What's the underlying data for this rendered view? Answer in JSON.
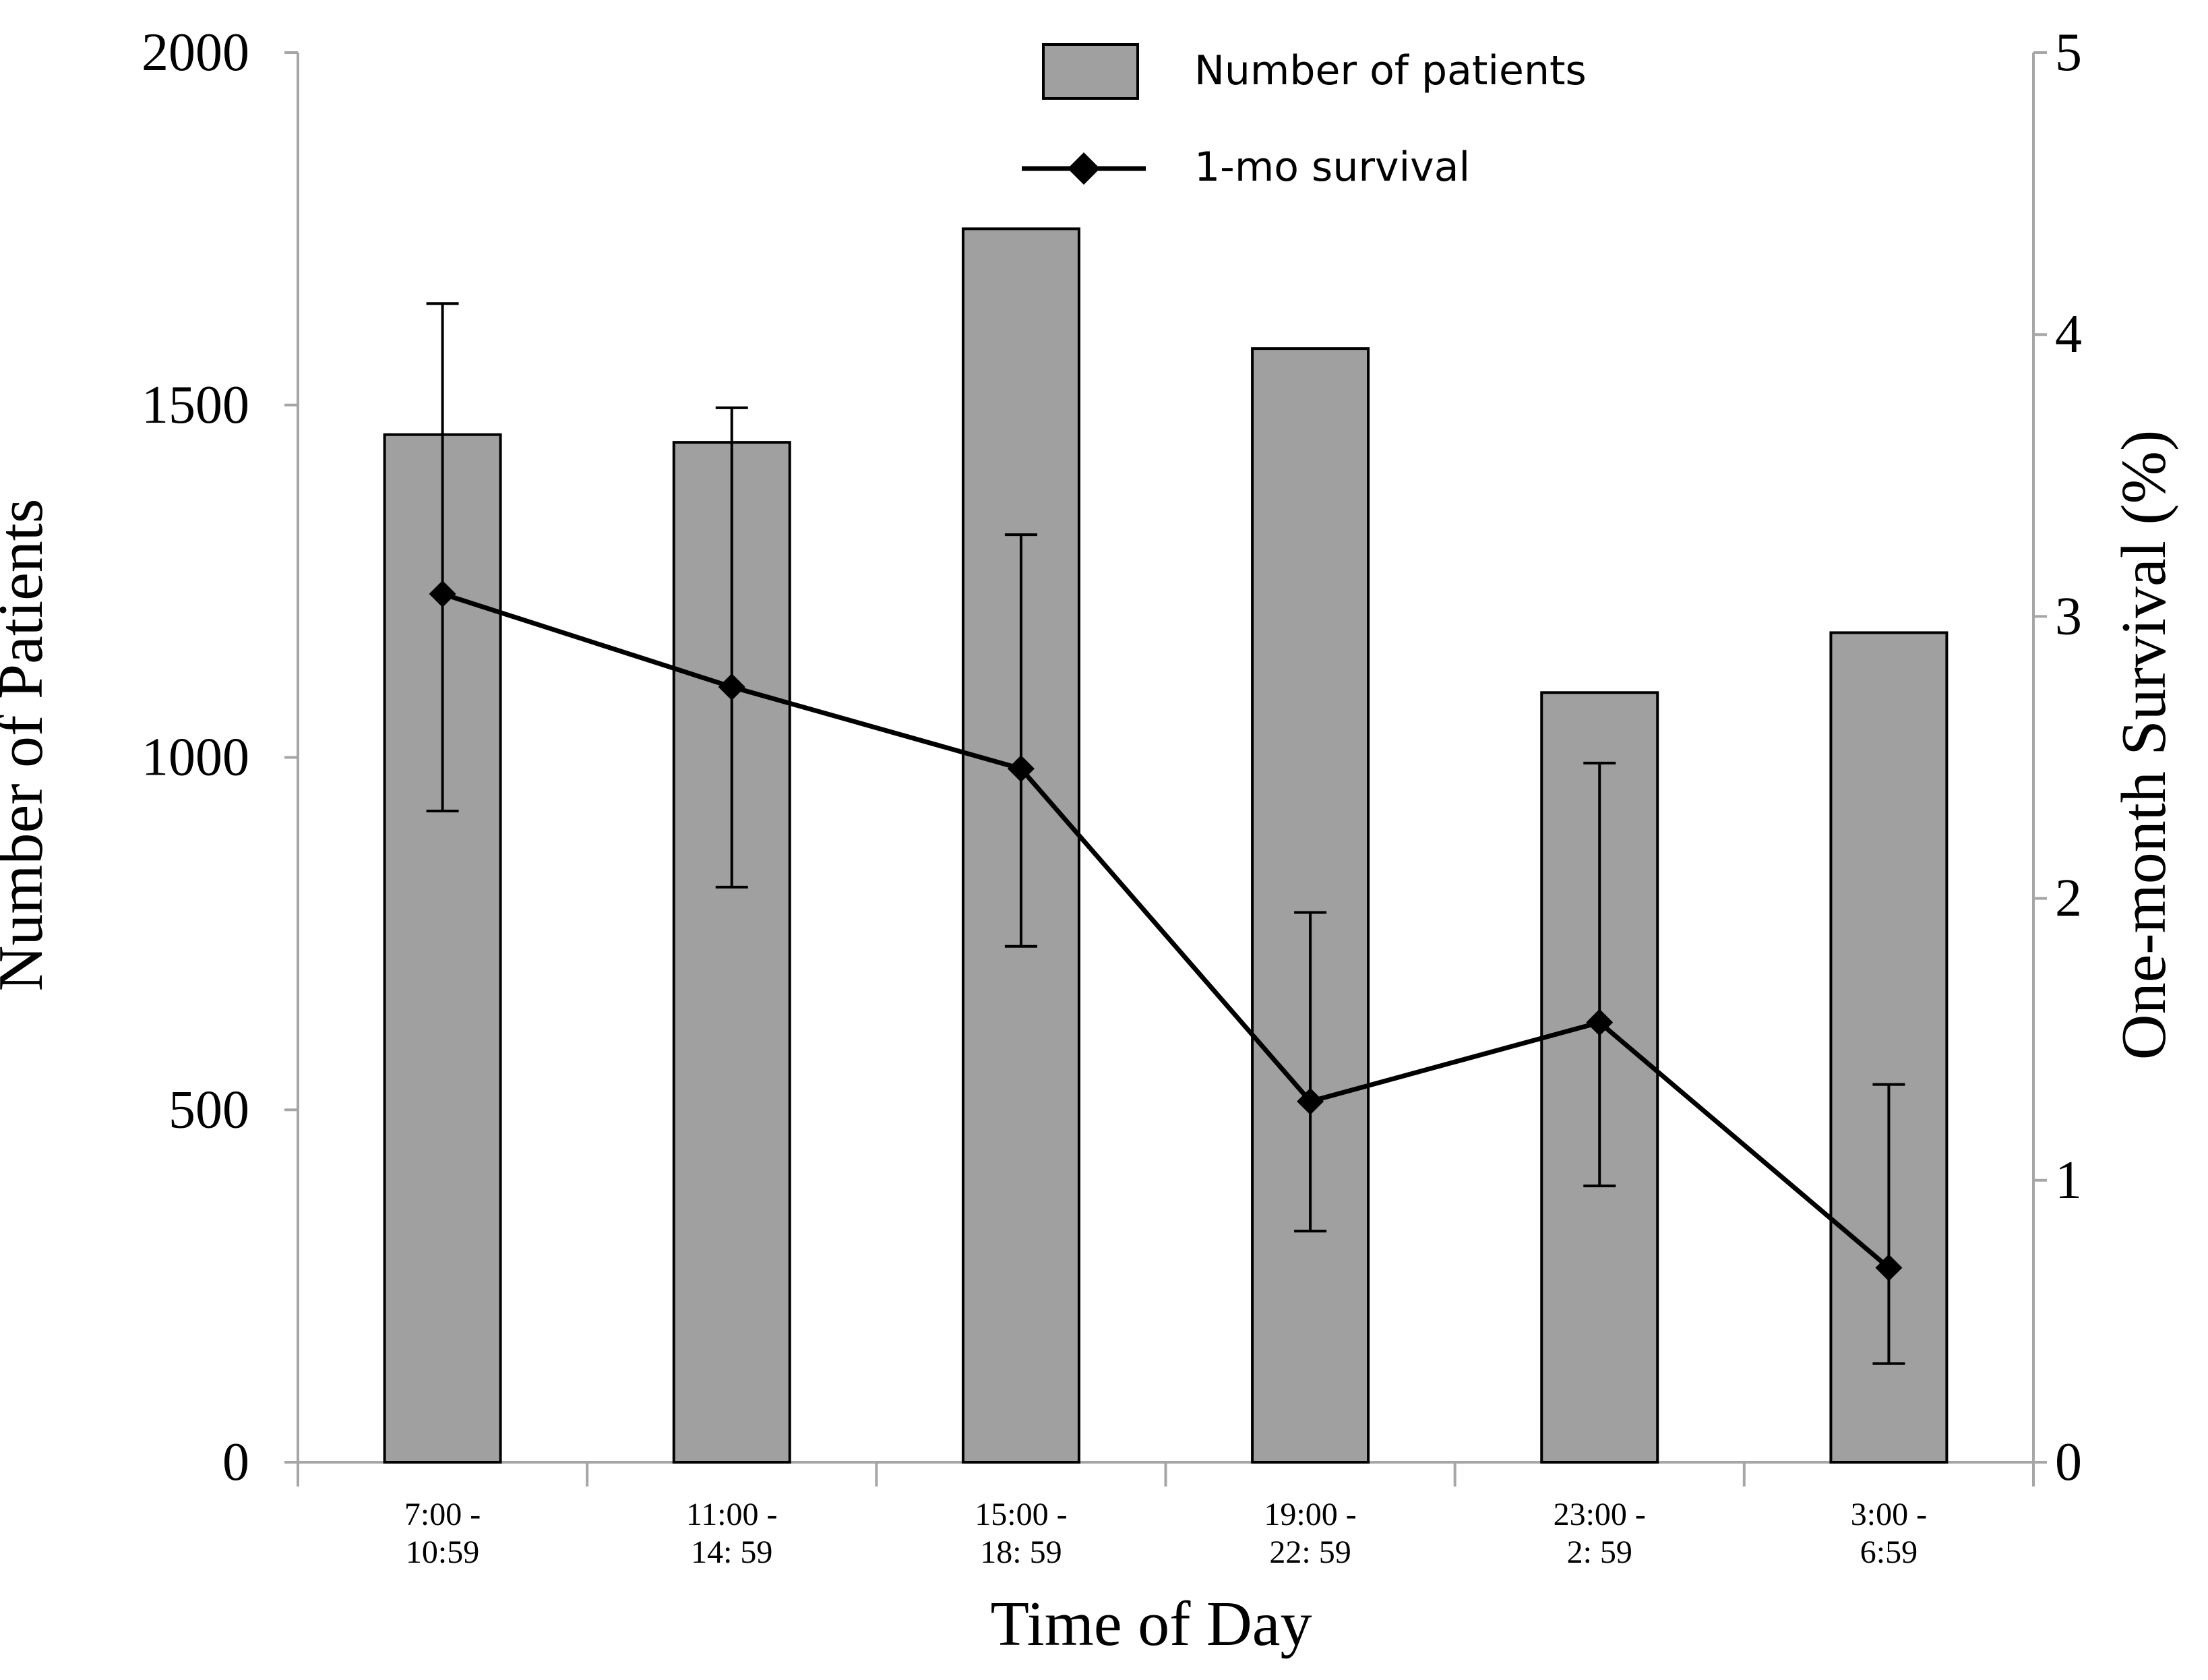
{
  "chart_data": {
    "type": "bar",
    "categories": [
      [
        "7:00 -",
        "10:59"
      ],
      [
        "11:00 -",
        "14: 59"
      ],
      [
        "15:00 -",
        "18: 59"
      ],
      [
        "19:00 -",
        "22: 59"
      ],
      [
        "23:00 -",
        "2: 59"
      ],
      [
        "3:00 -",
        "6:59"
      ]
    ],
    "xlabel": "Time of Day",
    "ylabel": "Number of Patients",
    "y2label": "One-month Survival (%)",
    "ylim": [
      0,
      2000
    ],
    "yticks": [
      "0",
      "500",
      "1000",
      "1500",
      "2000"
    ],
    "y2lim": [
      0,
      5
    ],
    "y2ticks": [
      "0",
      "1",
      "2",
      "3",
      "4",
      "5"
    ],
    "grid": false,
    "legend_position": "top-center",
    "series": [
      {
        "name": "Number of patients",
        "type": "bar",
        "axis": "left",
        "color": "#a0a0a0",
        "values": [
          1458,
          1447,
          1750,
          1580,
          1092,
          1177
        ]
      },
      {
        "name": "1-mo survival",
        "type": "line",
        "axis": "right",
        "color": "#000000",
        "marker": "diamond",
        "values": [
          3.08,
          2.75,
          2.46,
          1.28,
          1.56,
          0.69
        ],
        "error_low": [
          2.31,
          2.04,
          1.83,
          0.82,
          0.98,
          0.35
        ],
        "error_high": [
          4.11,
          3.74,
          3.29,
          1.95,
          2.48,
          1.34
        ]
      }
    ]
  }
}
